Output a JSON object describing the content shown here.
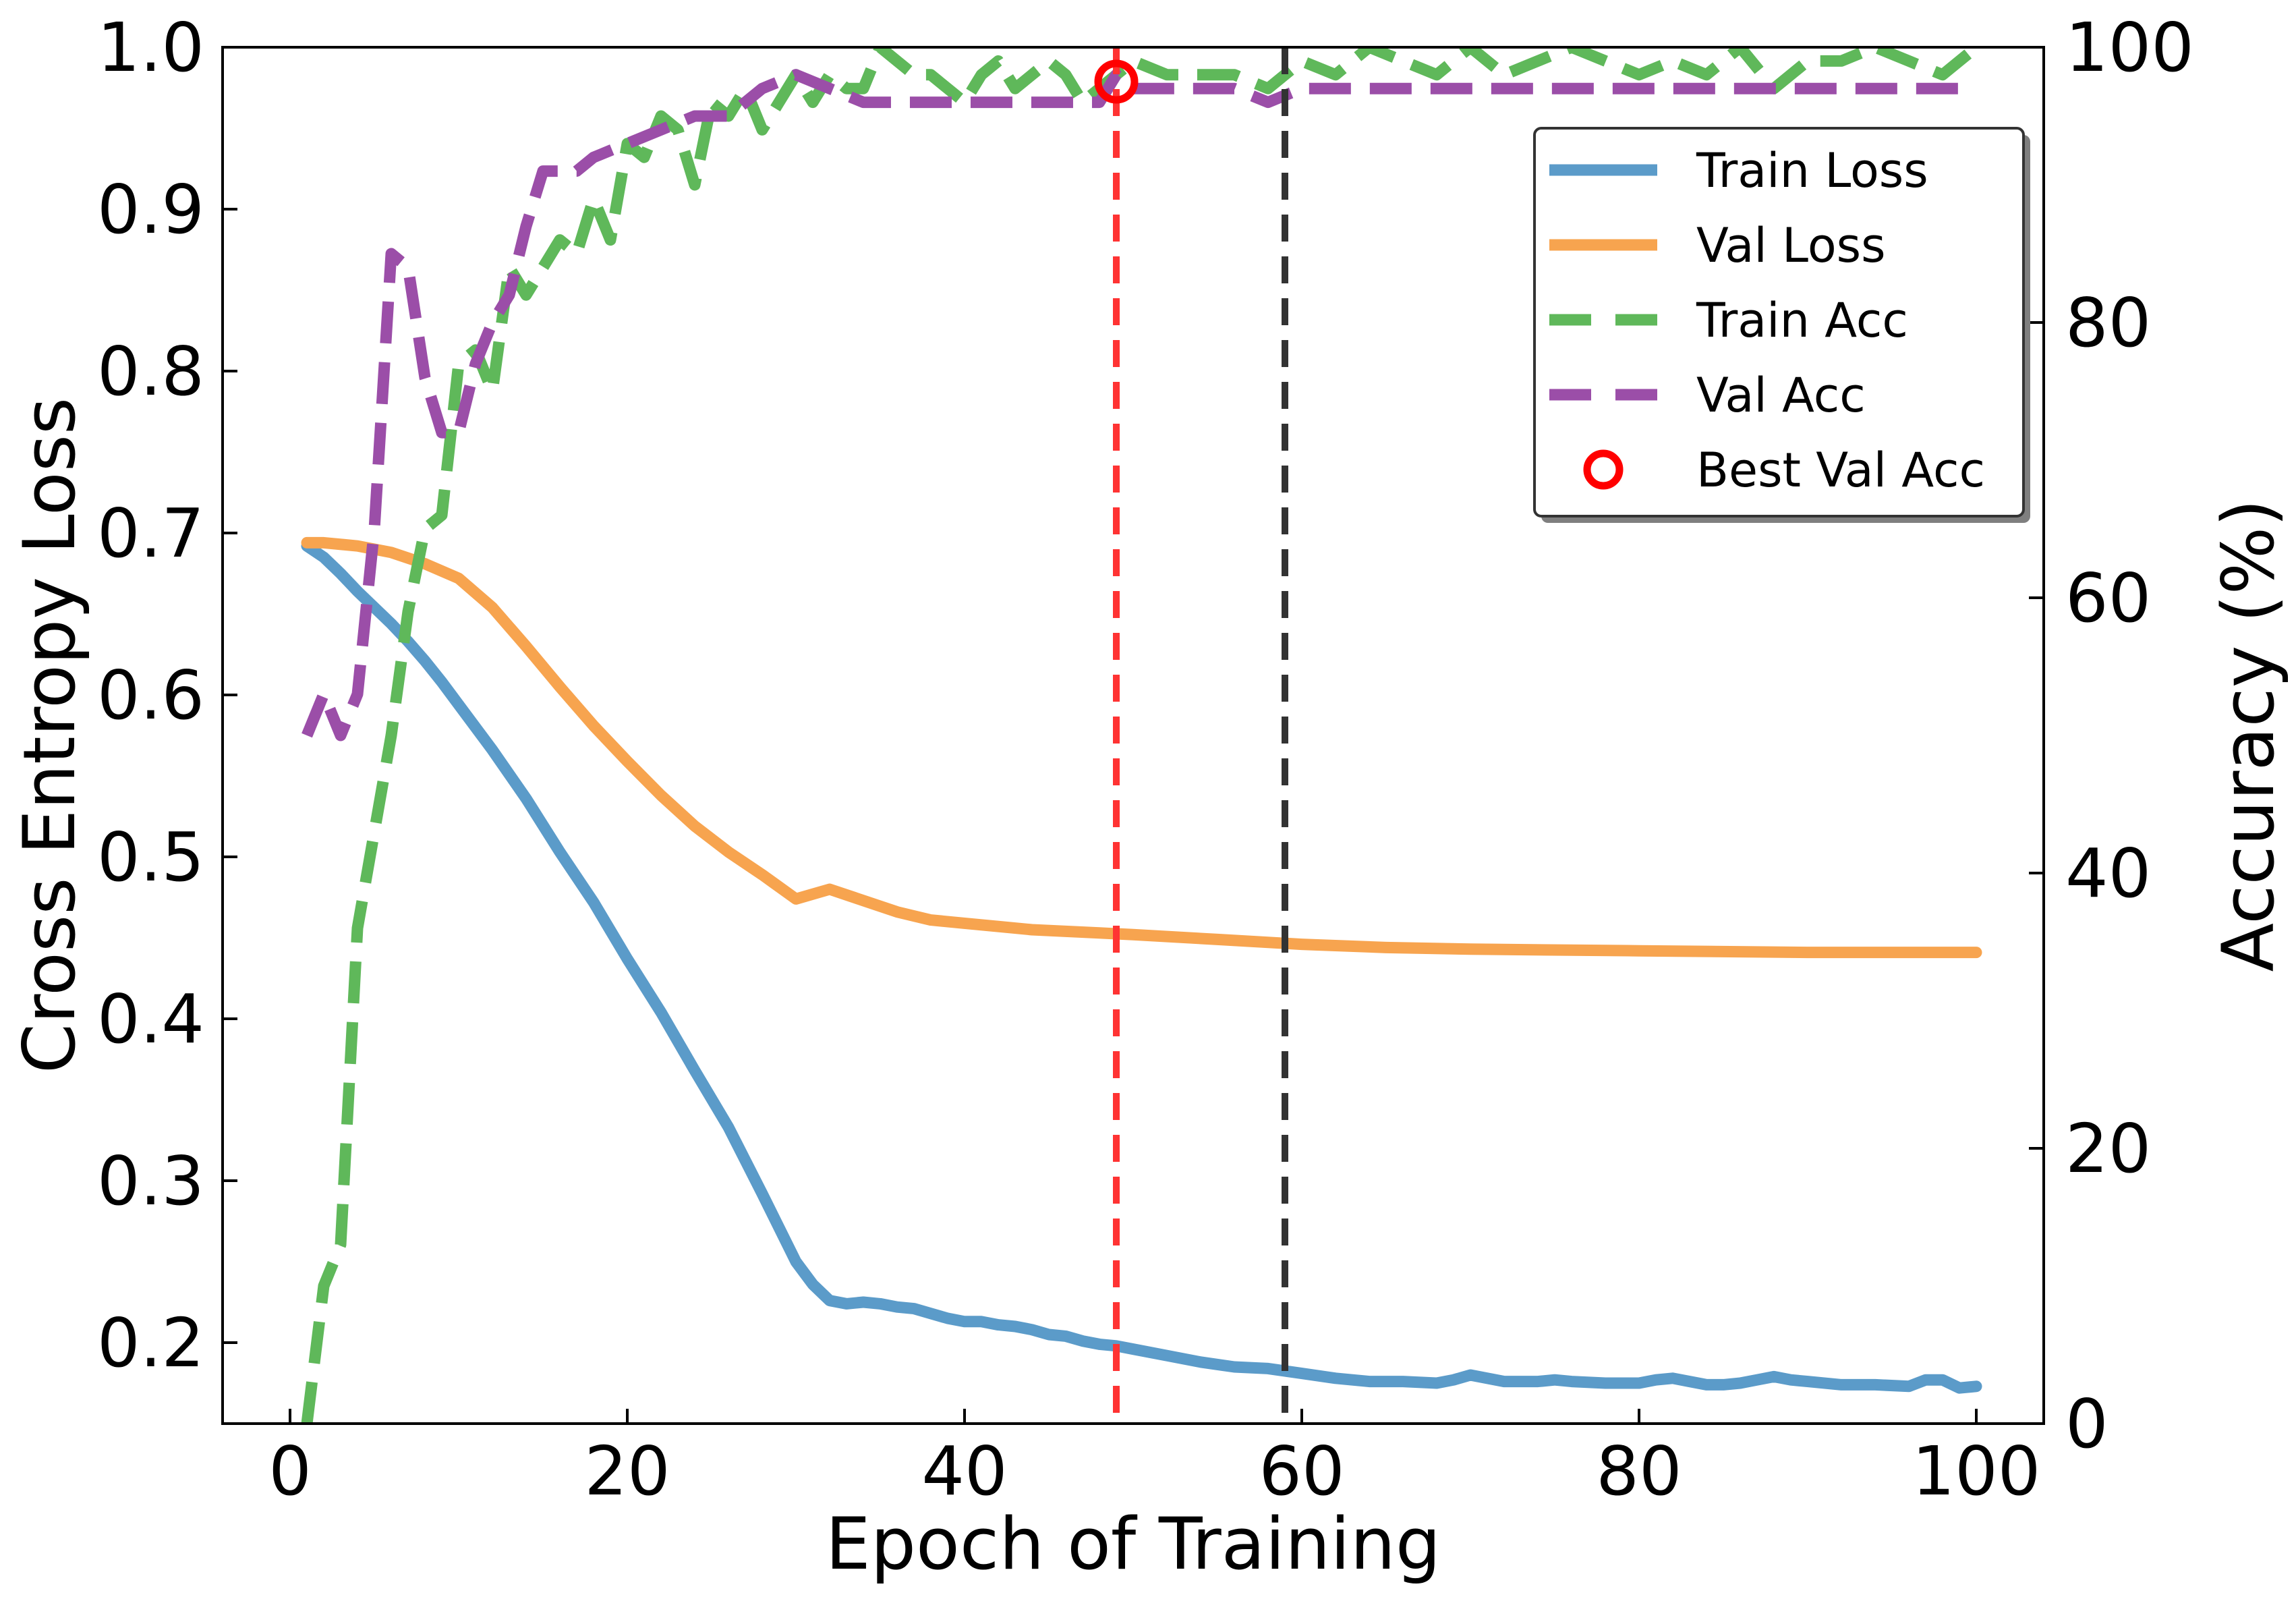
{
  "chart_data": {
    "type": "line",
    "title": "",
    "xlabel": "Epoch of Training",
    "ylabel_left": "Cross Entropy Loss",
    "ylabel_right": "Accuracy (%)",
    "xlim": [
      -4,
      104
    ],
    "ylim_left": [
      0.15,
      1.0
    ],
    "ylim_right": [
      0,
      100
    ],
    "x_ticks": [
      0,
      20,
      40,
      60,
      80,
      100
    ],
    "y_ticks_left": [
      0.2,
      0.3,
      0.4,
      0.5,
      0.6,
      0.7,
      0.8,
      0.9,
      1.0
    ],
    "y_ticks_right": [
      0,
      20,
      40,
      60,
      80,
      100
    ],
    "grid": false,
    "legend_position": "upper right",
    "series": [
      {
        "name": "Train Loss",
        "axis": "left",
        "style": "solid",
        "color": "#5b9bc9",
        "x": [
          1,
          2,
          3,
          4,
          5,
          6,
          7,
          8,
          9,
          10,
          12,
          14,
          16,
          18,
          20,
          22,
          24,
          26,
          28,
          30,
          31,
          32,
          33,
          34,
          35,
          36,
          37,
          38,
          39,
          40,
          41,
          42,
          43,
          44,
          45,
          46,
          47,
          48,
          49,
          50,
          52,
          54,
          56,
          58,
          60,
          62,
          64,
          66,
          68,
          69,
          70,
          72,
          74,
          75,
          76,
          78,
          80,
          81,
          82,
          83,
          84,
          85,
          86,
          87,
          88,
          89,
          90,
          92,
          94,
          96,
          97,
          98,
          99,
          100
        ],
        "values": [
          0.692,
          0.685,
          0.675,
          0.664,
          0.654,
          0.644,
          0.633,
          0.621,
          0.608,
          0.594,
          0.566,
          0.536,
          0.503,
          0.472,
          0.437,
          0.404,
          0.368,
          0.333,
          0.292,
          0.25,
          0.236,
          0.226,
          0.224,
          0.225,
          0.224,
          0.222,
          0.221,
          0.218,
          0.215,
          0.213,
          0.213,
          0.211,
          0.21,
          0.208,
          0.205,
          0.204,
          0.201,
          0.199,
          0.198,
          0.196,
          0.192,
          0.188,
          0.185,
          0.184,
          0.181,
          0.178,
          0.176,
          0.176,
          0.175,
          0.177,
          0.18,
          0.176,
          0.176,
          0.177,
          0.176,
          0.175,
          0.175,
          0.177,
          0.178,
          0.176,
          0.174,
          0.174,
          0.175,
          0.177,
          0.179,
          0.177,
          0.176,
          0.174,
          0.174,
          0.173,
          0.177,
          0.177,
          0.172,
          0.173
        ]
      },
      {
        "name": "Val Loss",
        "axis": "left",
        "style": "solid",
        "color": "#f7a44f",
        "x": [
          1,
          2,
          4,
          6,
          8,
          10,
          12,
          14,
          16,
          18,
          20,
          22,
          24,
          26,
          28,
          30,
          32,
          34,
          36,
          38,
          40,
          42,
          44,
          46,
          48,
          50,
          55,
          60,
          65,
          70,
          80,
          90,
          100
        ],
        "values": [
          0.694,
          0.694,
          0.692,
          0.688,
          0.681,
          0.672,
          0.654,
          0.63,
          0.605,
          0.581,
          0.559,
          0.538,
          0.519,
          0.503,
          0.489,
          0.474,
          0.48,
          0.473,
          0.466,
          0.461,
          0.459,
          0.457,
          0.455,
          0.454,
          0.453,
          0.452,
          0.449,
          0.446,
          0.444,
          0.443,
          0.442,
          0.441,
          0.441
        ]
      },
      {
        "name": "Train Acc",
        "axis": "right",
        "style": "dashed",
        "color": "#5fb85a",
        "x": [
          1,
          2,
          3,
          4,
          5,
          6,
          7,
          8,
          9,
          10,
          11,
          12,
          13,
          14,
          15,
          16,
          17,
          18,
          19,
          20,
          21,
          22,
          23,
          24,
          25,
          26,
          27,
          28,
          29,
          30,
          31,
          32,
          33,
          34,
          35,
          36,
          37,
          38,
          39,
          40,
          41,
          42,
          43,
          44,
          45,
          46,
          47,
          48,
          49,
          50,
          52,
          54,
          56,
          58,
          60,
          62,
          64,
          66,
          68,
          70,
          72,
          74,
          76,
          78,
          80,
          82,
          84,
          86,
          88,
          90,
          92,
          94,
          96,
          98,
          100
        ],
        "values": [
          0,
          10,
          13,
          36,
          43,
          50,
          59,
          65,
          66,
          77,
          78,
          75,
          84,
          82,
          84,
          86,
          85,
          89,
          86,
          93,
          92,
          95,
          94,
          90,
          96,
          95,
          97,
          94,
          96,
          98,
          96,
          98,
          97,
          97,
          100,
          99,
          98,
          98,
          97,
          96,
          98,
          99,
          97,
          98,
          99,
          98,
          96,
          97,
          98,
          99,
          98,
          98,
          98,
          97,
          99,
          98,
          100,
          99,
          98,
          100,
          98,
          99,
          100,
          99,
          98,
          99,
          98,
          100,
          97,
          99,
          99,
          100,
          99,
          98,
          100
        ]
      },
      {
        "name": "Val Acc",
        "axis": "right",
        "style": "dashed",
        "color": "#9b4ea8",
        "x": [
          1,
          2,
          3,
          4,
          5,
          6,
          7,
          8,
          9,
          10,
          11,
          12,
          13,
          14,
          15,
          16,
          17,
          18,
          20,
          22,
          24,
          26,
          28,
          30,
          32,
          34,
          36,
          38,
          40,
          42,
          44,
          46,
          48,
          49,
          50,
          52,
          54,
          56,
          58,
          60,
          62,
          64,
          66,
          68,
          70,
          72,
          74,
          76,
          78,
          80,
          82,
          84,
          86,
          88,
          90,
          92,
          94,
          96,
          98,
          100
        ],
        "values": [
          50,
          53,
          50,
          53,
          65,
          85,
          84,
          76,
          72,
          72,
          77,
          80,
          82,
          87,
          91,
          91,
          91,
          92,
          93,
          94,
          95,
          95,
          97,
          98,
          97,
          96,
          96,
          96,
          96,
          96,
          96,
          96,
          96,
          98,
          97,
          97,
          97,
          97,
          96,
          97,
          97,
          97,
          97,
          97,
          97,
          97,
          97,
          97,
          97,
          97,
          97,
          97,
          97,
          97,
          97,
          97,
          97,
          97,
          97,
          97
        ]
      }
    ],
    "marker": {
      "label": "Best Val Acc",
      "x": 49,
      "y": 97.5,
      "axis": "right",
      "color": "#ff0000"
    },
    "vlines": [
      {
        "x": 49,
        "color": "#ff3333",
        "style": "dashed"
      },
      {
        "x": 59,
        "color": "#333333",
        "style": "dashed"
      }
    ]
  }
}
